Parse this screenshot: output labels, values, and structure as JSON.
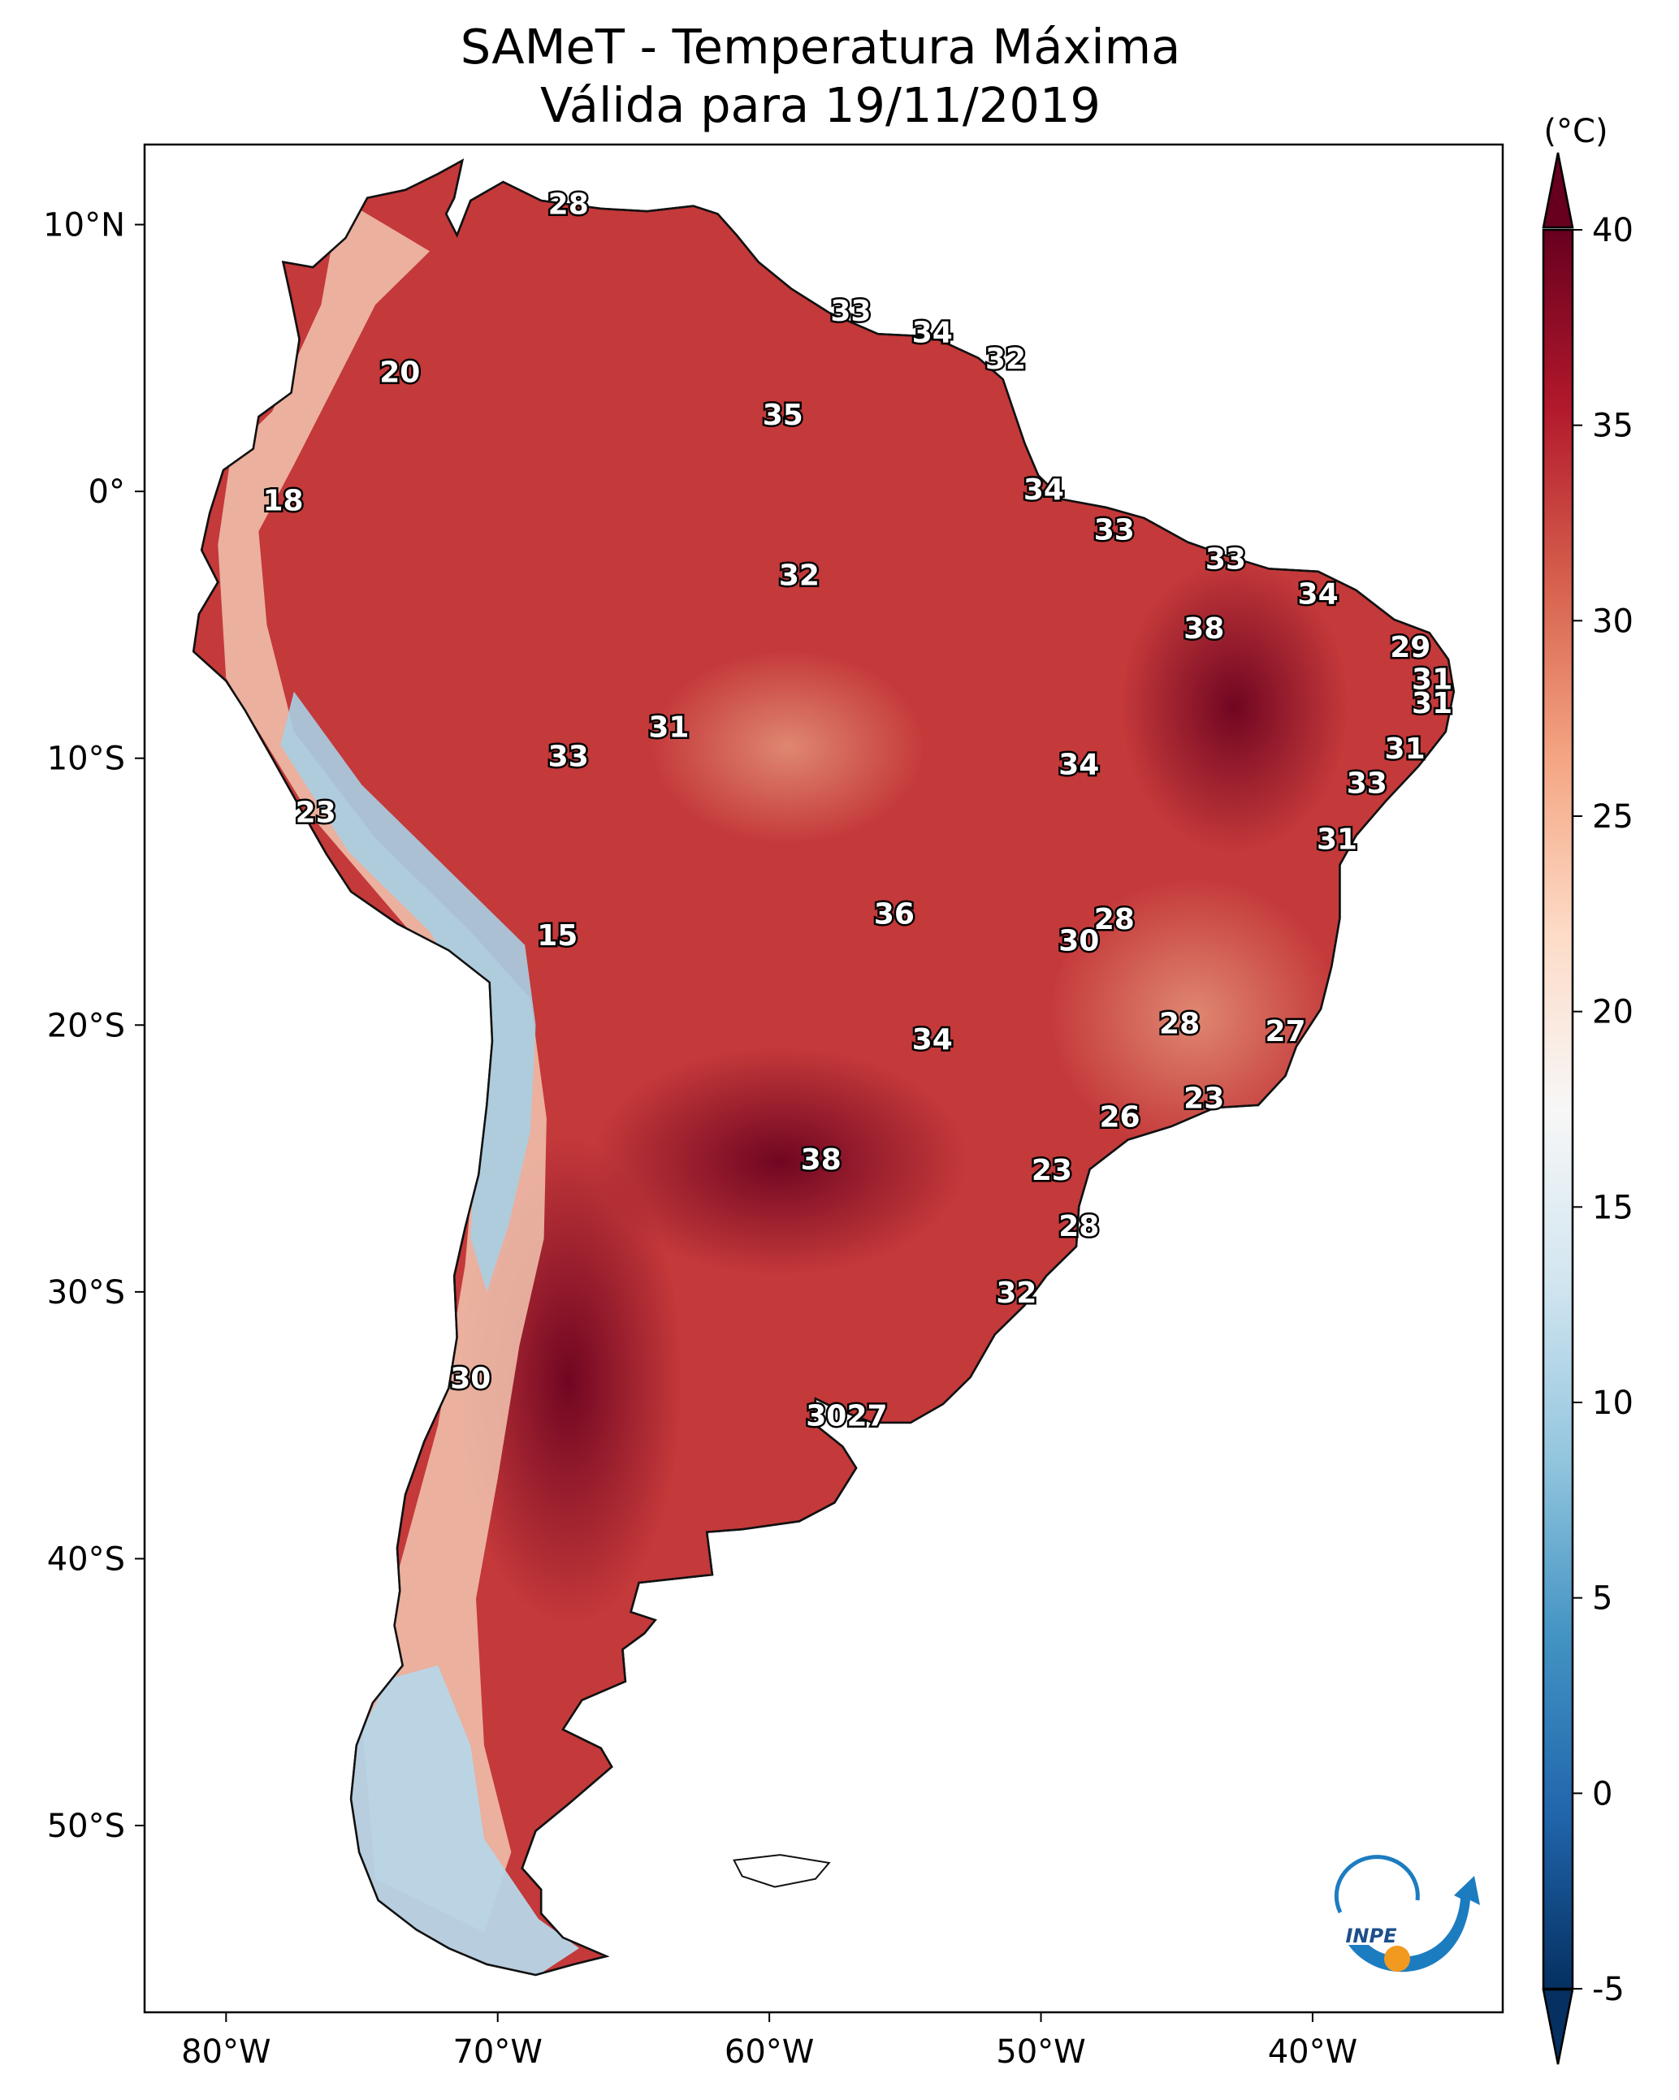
{
  "title": {
    "line1": "SAMeT - Temperatura Máxima",
    "line2": "Válida para 19/11/2019"
  },
  "map": {
    "lon_range": [
      -83,
      -33
    ],
    "lat_range": [
      -57,
      13
    ],
    "lon_ticks": [
      "80°W",
      "70°W",
      "60°W",
      "50°W",
      "40°W"
    ],
    "lat_ticks": [
      "10°N",
      "0°",
      "10°S",
      "20°S",
      "30°S",
      "40°S",
      "50°S"
    ]
  },
  "colorbar": {
    "unit": "(°C)",
    "range": [
      -5,
      40
    ],
    "tick_labels": [
      "40",
      "35",
      "30",
      "25",
      "20",
      "15",
      "10",
      "5",
      "0",
      "-5"
    ],
    "colors": [
      "#053061",
      "#2166ac",
      "#4393c3",
      "#92c5de",
      "#d1e5f0",
      "#f7f7f7",
      "#fddbc7",
      "#f4a582",
      "#d6604d",
      "#b2182b",
      "#67001f"
    ]
  },
  "station_labels": [
    {
      "text": "28",
      "lon": -67.4,
      "lat": 10.7
    },
    {
      "text": "33",
      "lon": -57.0,
      "lat": 6.7
    },
    {
      "text": "34",
      "lon": -54.0,
      "lat": 5.9
    },
    {
      "text": "32",
      "lon": -51.3,
      "lat": 4.9
    },
    {
      "text": "20",
      "lon": -73.6,
      "lat": 4.4
    },
    {
      "text": "35",
      "lon": -59.5,
      "lat": 2.8
    },
    {
      "text": "18",
      "lon": -77.9,
      "lat": -0.4
    },
    {
      "text": "34",
      "lon": -49.9,
      "lat": 0.0
    },
    {
      "text": "33",
      "lon": -47.3,
      "lat": -1.5
    },
    {
      "text": "33",
      "lon": -43.2,
      "lat": -2.6
    },
    {
      "text": "32",
      "lon": -58.9,
      "lat": -3.2
    },
    {
      "text": "34",
      "lon": -39.8,
      "lat": -3.9
    },
    {
      "text": "38",
      "lon": -44.0,
      "lat": -5.2
    },
    {
      "text": "29",
      "lon": -36.4,
      "lat": -5.9
    },
    {
      "text": "31",
      "lon": -35.6,
      "lat": -7.1
    },
    {
      "text": "31",
      "lon": -35.6,
      "lat": -8.0
    },
    {
      "text": "31",
      "lon": -63.7,
      "lat": -8.9
    },
    {
      "text": "33",
      "lon": -67.4,
      "lat": -10.0
    },
    {
      "text": "31",
      "lon": -36.6,
      "lat": -9.7
    },
    {
      "text": "34",
      "lon": -48.6,
      "lat": -10.3
    },
    {
      "text": "33",
      "lon": -38.0,
      "lat": -11.0
    },
    {
      "text": "23",
      "lon": -76.7,
      "lat": -12.1
    },
    {
      "text": "31",
      "lon": -39.1,
      "lat": -13.1
    },
    {
      "text": "36",
      "lon": -55.4,
      "lat": -15.9
    },
    {
      "text": "28",
      "lon": -47.3,
      "lat": -16.1
    },
    {
      "text": "15",
      "lon": -67.8,
      "lat": -16.7
    },
    {
      "text": "30",
      "lon": -48.6,
      "lat": -16.9
    },
    {
      "text": "28",
      "lon": -44.9,
      "lat": -20.0
    },
    {
      "text": "27",
      "lon": -41.0,
      "lat": -20.3
    },
    {
      "text": "34",
      "lon": -54.0,
      "lat": -20.6
    },
    {
      "text": "23",
      "lon": -44.0,
      "lat": -22.8
    },
    {
      "text": "26",
      "lon": -47.1,
      "lat": -23.5
    },
    {
      "text": "38",
      "lon": -58.1,
      "lat": -25.1
    },
    {
      "text": "23",
      "lon": -49.6,
      "lat": -25.5
    },
    {
      "text": "28",
      "lon": -48.6,
      "lat": -27.6
    },
    {
      "text": "32",
      "lon": -50.9,
      "lat": -30.1
    },
    {
      "text": "30",
      "lon": -71.0,
      "lat": -33.3
    },
    {
      "text": "30",
      "lon": -57.9,
      "lat": -34.7
    },
    {
      "text": "27",
      "lon": -56.4,
      "lat": -34.7
    }
  ],
  "logo": {
    "text": "INPE"
  }
}
